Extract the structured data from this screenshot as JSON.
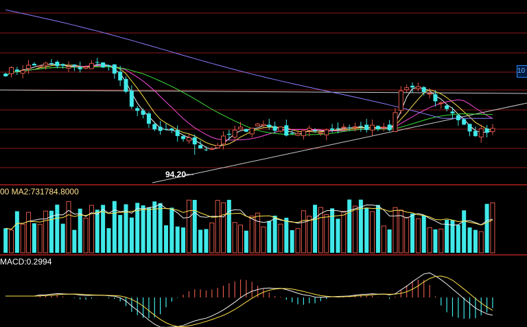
{
  "chart_data": [
    {
      "type": "candlestick",
      "panel": "price",
      "low_annotation": {
        "label": "94.20",
        "value": 94.2
      },
      "right_tag": {
        "label": "10"
      },
      "colors": {
        "up": "#e0584a",
        "down": "#40e8e8",
        "ma1": "#f0f0f0",
        "ma2": "#ffe24a",
        "ma3": "#ff4ae0",
        "ma4": "#3ae03a",
        "ma5": "#8a7cff",
        "grid": "#8b1a1a",
        "trend": "#cccccc"
      }
    },
    {
      "type": "bar",
      "panel": "volume",
      "indicator_text": "00 MA2:731784.8000"
    },
    {
      "type": "bar",
      "panel": "macd",
      "indicator_text": "MACD:0.2994"
    }
  ]
}
